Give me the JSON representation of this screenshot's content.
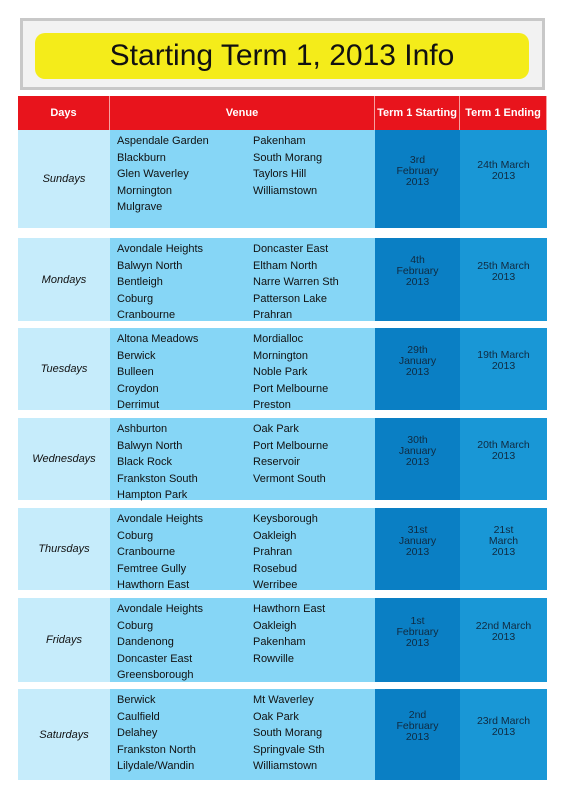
{
  "header": {
    "title": "Starting Term 1, 2013 Info"
  },
  "table": {
    "columns": [
      "Days",
      "Venue",
      "Term 1 Starting",
      "Term 1 Ending"
    ],
    "rows": [
      {
        "day": "Sundays",
        "venues": [
          [
            "Aspendale Garden",
            "Blackburn",
            "Glen Waverley",
            "Mornington",
            "Mulgrave"
          ],
          [
            "Pakenham",
            "South Morang",
            "Taylors Hill",
            "Williamstown"
          ]
        ],
        "start": [
          "3rd",
          "February",
          "2013"
        ],
        "end": [
          "24th March",
          "2013"
        ]
      },
      {
        "day": "Mondays",
        "venues": [
          [
            "Avondale Heights",
            "Balwyn North",
            "Bentleigh",
            "Coburg",
            "Cranbourne"
          ],
          [
            "Doncaster East",
            "Eltham North",
            "Narre Warren Sth",
            "Patterson Lake",
            "Prahran"
          ]
        ],
        "start": [
          "4th",
          "February",
          "2013"
        ],
        "end": [
          "25th March",
          "2013"
        ]
      },
      {
        "day": "Tuesdays",
        "venues": [
          [
            "Altona Meadows",
            "Berwick",
            "Bulleen",
            "Croydon",
            "Derrimut"
          ],
          [
            "Mordialloc",
            "Mornington",
            "Noble Park",
            "Port Melbourne",
            "Preston"
          ]
        ],
        "start": [
          "29th",
          "January",
          "2013"
        ],
        "end": [
          "19th March",
          "2013"
        ]
      },
      {
        "day": "Wednesdays",
        "venues": [
          [
            "Ashburton",
            "Balwyn North",
            "Black Rock",
            "Frankston South",
            "Hampton Park"
          ],
          [
            "Oak Park",
            "Port Melbourne",
            "Reservoir",
            "Vermont South"
          ]
        ],
        "start": [
          "30th",
          "January",
          "2013"
        ],
        "end": [
          "20th March",
          "2013"
        ]
      },
      {
        "day": "Thursdays",
        "venues": [
          [
            "Avondale Heights",
            "Coburg",
            "Cranbourne",
            "Femtree Gully",
            "Hawthorn East"
          ],
          [
            "Keysborough",
            "Oakleigh",
            "Prahran",
            "Rosebud",
            "Werribee"
          ]
        ],
        "start": [
          "31st",
          "January",
          "2013"
        ],
        "end": [
          "21st",
          "March",
          "2013"
        ]
      },
      {
        "day": "Fridays",
        "venues": [
          [
            "Avondale Heights",
            "Coburg",
            "Dandenong",
            "Doncaster East",
            "Greensborough"
          ],
          [
            "Hawthorn East",
            "Oakleigh",
            "Pakenham",
            "Rowville"
          ]
        ],
        "start": [
          "1st",
          "February",
          "2013"
        ],
        "end": [
          "22nd March",
          "2013"
        ]
      },
      {
        "day": "Saturdays",
        "venues": [
          [
            "Berwick",
            "Caulfield",
            "Delahey",
            "Frankston North",
            "Lilydale/Wandin"
          ],
          [
            "Mt Waverley",
            "Oak Park",
            "South Morang",
            "Springvale Sth",
            "Williamstown"
          ]
        ],
        "start": [
          "2nd",
          "February",
          "2013"
        ],
        "end": [
          "23rd March",
          "2013"
        ]
      }
    ]
  }
}
